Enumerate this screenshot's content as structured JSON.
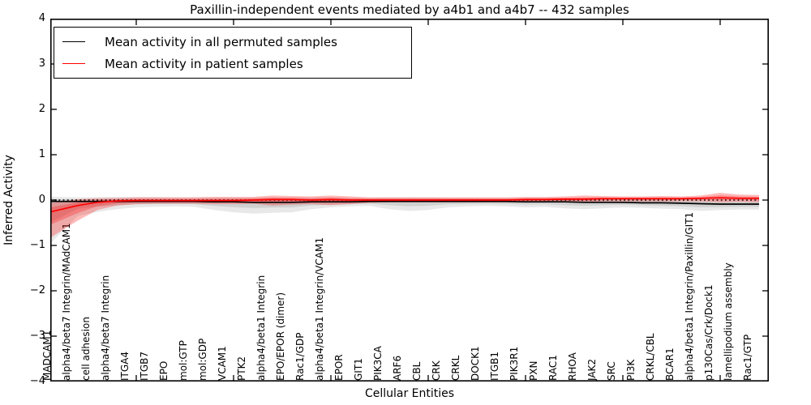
{
  "figure": {
    "title": "Paxillin-independent events mediated by a4b1 and a4b7 -- 432 samples",
    "xlabel": "Cellular Entities",
    "ylabel": "Inferred Activity"
  },
  "legend": {
    "items": [
      {
        "label": "Mean activity in all permuted samples",
        "color": "#000000"
      },
      {
        "label": "Mean activity in patient samples",
        "color": "#ff0000"
      }
    ]
  },
  "chart_data": {
    "type": "line",
    "title": "Paxillin-independent events mediated by a4b1 and a4b7 -- 432 samples",
    "xlabel": "Cellular Entities",
    "ylabel": "Inferred Activity",
    "ylim": [
      -4,
      4
    ],
    "yticks": [
      4,
      3,
      2,
      1,
      0,
      -1,
      -2,
      -3,
      -4
    ],
    "ytick_labels": [
      "4",
      "3",
      "2",
      "1",
      "0",
      "−1",
      "−2",
      "−3",
      "−4"
    ],
    "xtick_indices": [
      4,
      9,
      14,
      19,
      24,
      29,
      34
    ],
    "grid": false,
    "legend_position": "upper left",
    "zero_line": {
      "style": "dotted",
      "color": "#000000",
      "y": 0
    },
    "categories": [
      "MADCAM1",
      "alpha4/beta7 Integrin/MAdCAM1",
      "cell adhesion",
      "alpha4/beta7 Integrin",
      "ITGA4",
      "ITGB7",
      "EPO",
      "mol:GTP",
      "mol:GDP",
      "VCAM1",
      "PTK2",
      "alpha4/beta1 Integrin",
      "EPO/EPOR (dimer)",
      "Rac1/GDP",
      "alpha4/beta1 Integrin/VCAM1",
      "EPOR",
      "GIT1",
      "PIK3CA",
      "ARF6",
      "CBL",
      "CRK",
      "CRKL",
      "DOCK1",
      "ITGB1",
      "PIK3R1",
      "PXN",
      "RAC1",
      "RHOA",
      "JAK2",
      "SRC",
      "PI3K",
      "CRKL/CBL",
      "BCAR1",
      "alpha4/beta1 Integrin/Paxillin/GIT1",
      "p130Cas/Crk/Dock1",
      "lamellipodium assembly",
      "Rac1/GTP"
    ],
    "series": [
      {
        "name": "Mean activity in all permuted samples",
        "color": "#000000",
        "band_color": "#000000",
        "values": [
          -0.03,
          -0.03,
          -0.03,
          -0.03,
          -0.03,
          -0.03,
          -0.03,
          -0.03,
          -0.04,
          -0.04,
          -0.05,
          -0.05,
          -0.05,
          -0.04,
          -0.04,
          -0.04,
          -0.03,
          -0.03,
          -0.03,
          -0.03,
          -0.03,
          -0.03,
          -0.03,
          -0.03,
          -0.04,
          -0.04,
          -0.04,
          -0.05,
          -0.05,
          -0.05,
          -0.06,
          -0.06,
          -0.07,
          -0.08,
          -0.09,
          -0.09,
          -0.09
        ],
        "band_upper": [
          0.07,
          0.06,
          0.07,
          0.07,
          0.07,
          0.07,
          0.06,
          0.06,
          0.06,
          0.06,
          0.06,
          0.06,
          0.06,
          0.06,
          0.06,
          0.05,
          0.05,
          0.06,
          0.06,
          0.06,
          0.05,
          0.05,
          0.05,
          0.05,
          0.05,
          0.05,
          0.05,
          0.05,
          0.05,
          0.04,
          0.04,
          0.04,
          0.03,
          0.03,
          0.02,
          0.02,
          0.02
        ],
        "band_lower": [
          -0.78,
          -0.35,
          -0.26,
          -0.2,
          -0.16,
          -0.15,
          -0.14,
          -0.15,
          -0.22,
          -0.27,
          -0.3,
          -0.28,
          -0.27,
          -0.2,
          -0.16,
          -0.14,
          -0.13,
          -0.2,
          -0.24,
          -0.22,
          -0.16,
          -0.14,
          -0.13,
          -0.14,
          -0.16,
          -0.15,
          -0.18,
          -0.2,
          -0.18,
          -0.16,
          -0.17,
          -0.19,
          -0.2,
          -0.24,
          -0.22,
          -0.21,
          -0.21
        ]
      },
      {
        "name": "Mean activity in patient samples",
        "color": "#ff0000",
        "band_color": "#ff0000",
        "values": [
          -0.22,
          -0.12,
          -0.05,
          -0.02,
          -0.01,
          -0.01,
          -0.01,
          -0.01,
          -0.01,
          -0.01,
          0.0,
          0.01,
          0.01,
          0.0,
          0.01,
          0.0,
          0.0,
          0.0,
          0.0,
          0.0,
          0.0,
          0.0,
          0.0,
          0.0,
          0.01,
          0.01,
          0.02,
          0.02,
          0.03,
          0.03,
          0.03,
          0.03,
          0.03,
          0.04,
          0.05,
          0.04,
          0.04
        ],
        "band_upper": [
          -0.04,
          0.02,
          0.04,
          0.05,
          0.06,
          0.06,
          0.06,
          0.06,
          0.07,
          0.07,
          0.07,
          0.1,
          0.09,
          0.08,
          0.1,
          0.08,
          0.06,
          0.06,
          0.06,
          0.06,
          0.06,
          0.06,
          0.06,
          0.06,
          0.07,
          0.07,
          0.08,
          0.1,
          0.09,
          0.08,
          0.08,
          0.09,
          0.08,
          0.1,
          0.16,
          0.12,
          0.11
        ],
        "band_lower": [
          -0.72,
          -0.45,
          -0.22,
          -0.12,
          -0.09,
          -0.08,
          -0.08,
          -0.08,
          -0.09,
          -0.09,
          -0.08,
          -0.12,
          -0.1,
          -0.09,
          -0.11,
          -0.09,
          -0.06,
          -0.05,
          -0.05,
          -0.05,
          -0.05,
          -0.05,
          -0.05,
          -0.05,
          -0.05,
          -0.04,
          -0.04,
          -0.04,
          -0.03,
          -0.03,
          -0.03,
          -0.03,
          -0.03,
          -0.03,
          -0.05,
          -0.04,
          -0.05
        ]
      }
    ]
  }
}
